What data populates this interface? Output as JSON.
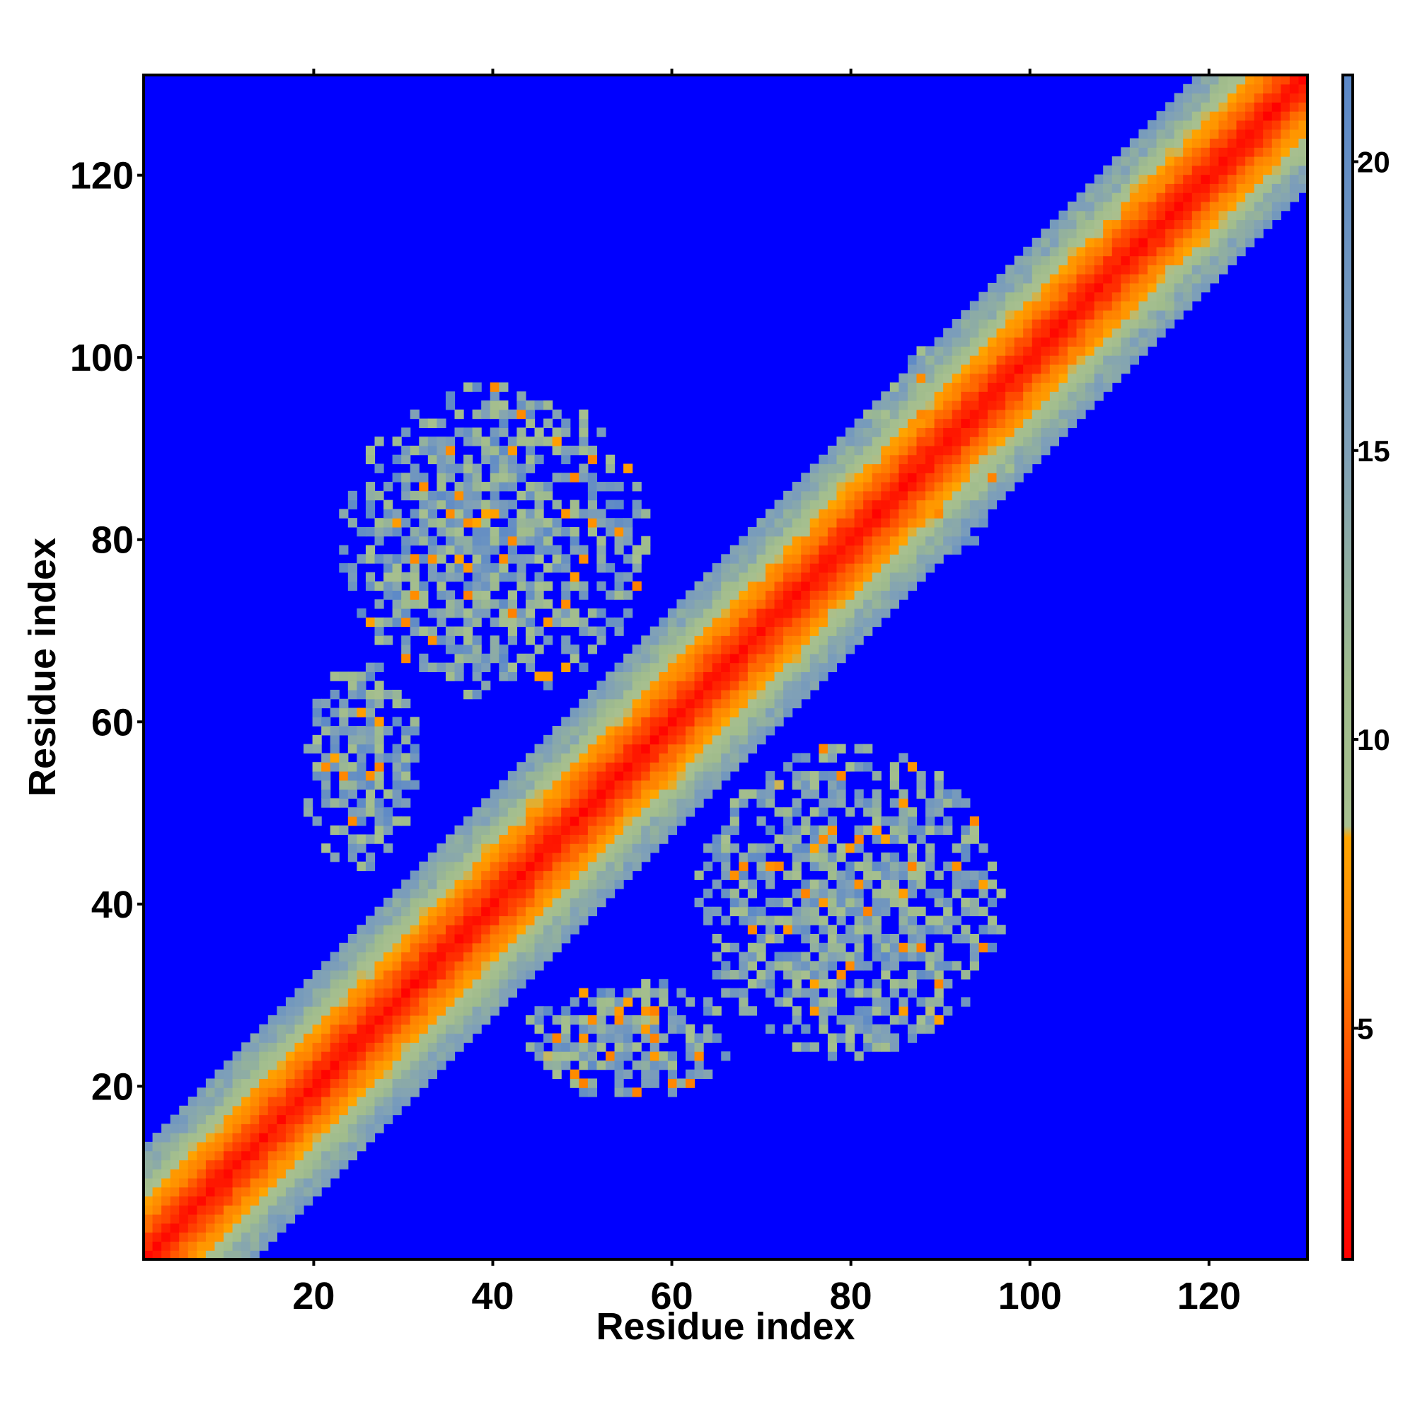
{
  "chart_data": {
    "type": "heatmap",
    "title": "",
    "xlabel": "Residue index",
    "ylabel": "Residue index",
    "xlim": [
      1,
      131
    ],
    "ylim": [
      1,
      131
    ],
    "x_ticks": [
      20,
      40,
      60,
      80,
      100,
      120
    ],
    "y_ticks": [
      20,
      40,
      60,
      80,
      100,
      120
    ],
    "n_residues": 131,
    "value_description": "pairwise residue distance; cells beyond cutoff shown in background color",
    "colorbar": {
      "range": [
        1,
        21.5
      ],
      "ticks": [
        5,
        10,
        15,
        20
      ],
      "stops": [
        {
          "value": 1,
          "color": "#ff0000"
        },
        {
          "value": 3.5,
          "color": "#ff3300"
        },
        {
          "value": 6,
          "color": "#ff8000"
        },
        {
          "value": 8.3,
          "color": "#ffa500"
        },
        {
          "value": 8.5,
          "color": "#a8c090"
        },
        {
          "value": 11,
          "color": "#a0bc8c"
        },
        {
          "value": 15,
          "color": "#7fa0b8"
        },
        {
          "value": 21.5,
          "color": "#5b88c8"
        }
      ],
      "out_of_range_color": "#0000ff"
    },
    "features": [
      {
        "label": "main diagonal band",
        "from": [
          1,
          1
        ],
        "to": [
          131,
          131
        ]
      },
      {
        "label": "contact region",
        "center": [
          40,
          80
        ],
        "extent": [
          30,
          30
        ]
      },
      {
        "label": "contact region",
        "center": [
          80,
          40
        ],
        "extent": [
          30,
          30
        ]
      },
      {
        "label": "contact region",
        "center": [
          90,
          90
        ],
        "extent": [
          15,
          20
        ]
      },
      {
        "label": "contact region",
        "center": [
          55,
          25
        ],
        "extent": [
          20,
          12
        ]
      },
      {
        "label": "contact region",
        "center": [
          25,
          55
        ],
        "extent": [
          12,
          20
        ]
      }
    ]
  }
}
